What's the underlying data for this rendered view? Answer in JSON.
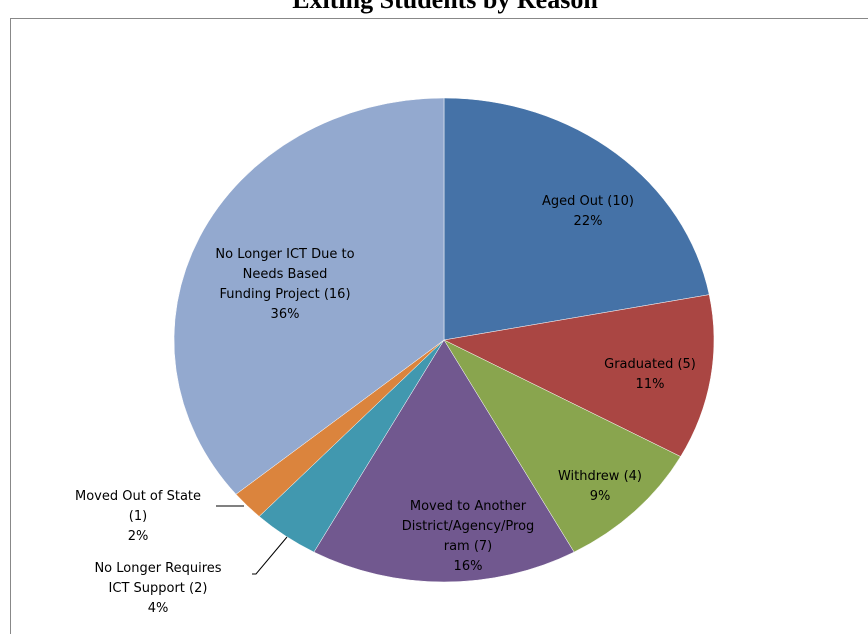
{
  "chart_data": {
    "type": "pie",
    "title": "Exiting Students by Reason",
    "categories": [
      "Aged Out  (10)",
      "Graduated  (5)",
      "Withdrew (4)",
      "Moved to Another\nDistrict/Agency/Prog\nram (7)",
      "No Longer Requires\nICT Support (2)",
      "Moved Out of State\n(1)",
      "No Longer ICT Due to\nNeeds Based\nFunding Project (16)"
    ],
    "values": [
      22,
      11,
      9,
      16,
      4,
      2,
      36
    ],
    "value_labels": [
      "22%",
      "11%",
      "9%",
      "16%",
      "4%",
      "2%",
      "36%"
    ],
    "colors": [
      "#4572a7",
      "#aa4643",
      "#89a54e",
      "#71588f",
      "#4198af",
      "#db843d",
      "#93a9cf"
    ]
  }
}
